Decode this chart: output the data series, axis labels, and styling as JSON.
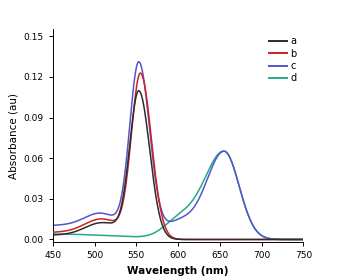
{
  "title": "",
  "xlabel": "Wavelength (nm)",
  "ylabel": "Absorbance (au)",
  "xlim": [
    450,
    750
  ],
  "ylim": [
    -0.002,
    0.155
  ],
  "yticks": [
    0.0,
    0.03,
    0.06,
    0.09,
    0.12,
    0.15
  ],
  "xticks": [
    450,
    500,
    550,
    600,
    650,
    700,
    750
  ],
  "legend_labels": [
    "a",
    "b",
    "c",
    "d"
  ],
  "line_colors": [
    "#2d2d2d",
    "#cc2222",
    "#5555cc",
    "#22aa88"
  ],
  "background_color": "#ffffff",
  "header_color": "#9e1a1a",
  "line_width": 1.1
}
